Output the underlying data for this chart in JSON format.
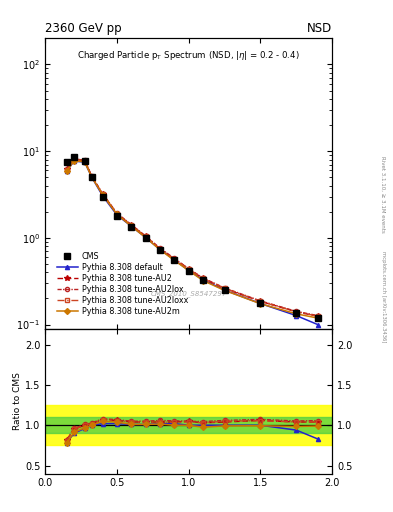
{
  "title_left": "2360 GeV pp",
  "title_right": "NSD",
  "watermark": "CMS_2010_S8547297",
  "right_label": "Rivet 3.1.10, ≥ 3.1M events",
  "arXiv_label": "mcplots.cern.ch [arXiv:1306.3436]",
  "ylabel_ratio": "Ratio to CMS",
  "xlim": [
    0.0,
    2.0
  ],
  "ylim_main": [
    0.09,
    200
  ],
  "ylim_ratio": [
    0.4,
    2.2
  ],
  "ratio_yticks": [
    0.5,
    1.0,
    1.5,
    2.0
  ],
  "pt_cms": [
    0.15,
    0.2,
    0.275,
    0.325,
    0.4,
    0.5,
    0.6,
    0.7,
    0.8,
    0.9,
    1.0,
    1.1,
    1.25,
    1.5,
    1.75,
    1.9
  ],
  "val_cms": [
    7.5,
    8.5,
    7.8,
    5.0,
    3.0,
    1.8,
    1.35,
    1.0,
    0.72,
    0.55,
    0.42,
    0.33,
    0.25,
    0.175,
    0.135,
    0.12
  ],
  "pt_mc": [
    0.15,
    0.2,
    0.275,
    0.325,
    0.4,
    0.5,
    0.6,
    0.7,
    0.8,
    0.9,
    1.0,
    1.1,
    1.25,
    1.5,
    1.75,
    1.9
  ],
  "val_default": [
    5.85,
    7.65,
    7.5,
    5.0,
    3.06,
    1.836,
    1.363,
    1.01,
    0.734,
    0.561,
    0.42,
    0.33,
    0.25,
    0.175,
    0.127,
    0.1
  ],
  "val_AU2": [
    6.15,
    8.08,
    7.8,
    5.1,
    3.21,
    1.908,
    1.404,
    1.04,
    0.749,
    0.572,
    0.441,
    0.34,
    0.26,
    0.1855,
    0.1404,
    0.1248
  ],
  "val_AU2lox": [
    6.15,
    8.16,
    7.878,
    5.15,
    3.25,
    1.926,
    1.423,
    1.05,
    0.763,
    0.5795,
    0.441,
    0.345,
    0.265,
    0.1878,
    0.1421,
    0.127
  ],
  "val_AU2loxx": [
    6.075,
    8.075,
    7.8,
    5.1,
    3.21,
    1.9,
    1.404,
    1.04,
    0.749,
    0.5695,
    0.4367,
    0.34,
    0.2625,
    0.185,
    0.1404,
    0.125
  ],
  "val_AU2m": [
    5.85,
    7.735,
    7.566,
    5.0,
    3.15,
    1.872,
    1.3635,
    1.01,
    0.73,
    0.55,
    0.42,
    0.3218,
    0.248,
    0.174,
    0.133,
    0.1188
  ],
  "ratio_default": [
    0.78,
    0.9,
    0.96,
    1.0,
    1.02,
    1.02,
    1.01,
    1.01,
    1.02,
    1.02,
    1.0,
    1.0,
    1.0,
    1.0,
    0.94,
    0.83
  ],
  "ratio_AU2": [
    0.82,
    0.95,
    1.0,
    1.02,
    1.07,
    1.06,
    1.04,
    1.04,
    1.04,
    1.04,
    1.05,
    1.03,
    1.04,
    1.06,
    1.04,
    1.04
  ],
  "ratio_AU2lox": [
    0.82,
    0.96,
    1.01,
    1.03,
    1.08,
    1.07,
    1.05,
    1.05,
    1.06,
    1.055,
    1.05,
    1.045,
    1.06,
    1.073,
    1.053,
    1.058
  ],
  "ratio_AU2loxx": [
    0.81,
    0.95,
    1.0,
    1.02,
    1.07,
    1.056,
    1.04,
    1.04,
    1.04,
    1.036,
    1.04,
    1.03,
    1.05,
    1.057,
    1.04,
    1.042
  ],
  "ratio_AU2m": [
    0.78,
    0.91,
    0.97,
    1.0,
    1.05,
    1.04,
    1.01,
    1.01,
    1.015,
    1.0,
    1.0,
    0.975,
    0.992,
    0.994,
    0.985,
    0.99
  ],
  "color_cms": "#000000",
  "color_default": "#2222cc",
  "color_AU2": "#bb0000",
  "color_AU2lox": "#bb2222",
  "color_AU2loxx": "#cc4422",
  "color_AU2m": "#cc7700",
  "band_green_lo": 0.9,
  "band_green_hi": 1.1,
  "band_yellow_lo": 0.75,
  "band_yellow_hi": 1.25,
  "xticks": [
    0.0,
    0.5,
    1.0,
    1.5,
    2.0
  ]
}
